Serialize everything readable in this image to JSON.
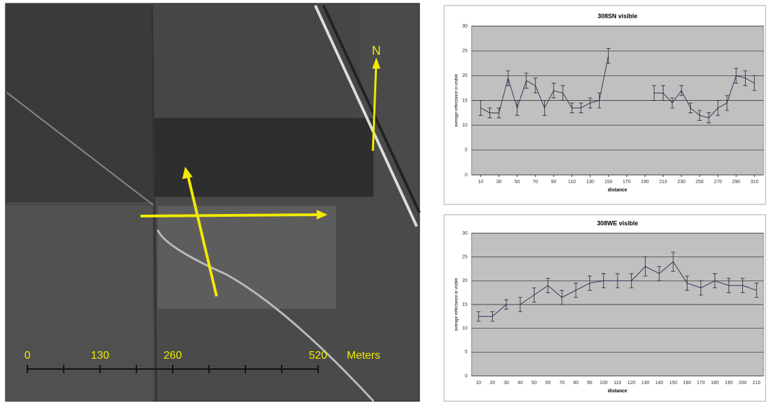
{
  "image": {
    "north_label": "N",
    "scale_labels": [
      0,
      130,
      260,
      520
    ],
    "scale_unit": "Meters"
  },
  "chart_data": [
    {
      "type": "line",
      "title": "308SN visible",
      "x_label": "distance",
      "y_label": "average reflectance in visible",
      "x": [
        10,
        20,
        30,
        40,
        50,
        60,
        70,
        80,
        90,
        100,
        110,
        120,
        130,
        140,
        150,
        160,
        170,
        180,
        190,
        200,
        210,
        220,
        230,
        240,
        250,
        260,
        270,
        280,
        290,
        300,
        310
      ],
      "values": [
        13.5,
        12.5,
        12.5,
        19.5,
        13.5,
        19,
        18,
        13.5,
        17,
        16.5,
        13.5,
        13.5,
        14.5,
        15,
        24,
        null,
        null,
        null,
        null,
        16.5,
        16.5,
        14.5,
        17,
        13.5,
        12,
        11.5,
        13.5,
        14.5,
        20,
        19.5,
        18.5
      ],
      "errors": [
        1.5,
        1,
        1,
        1.5,
        1.5,
        1.5,
        1.5,
        1.5,
        1.5,
        1.5,
        1,
        1,
        1,
        1.5,
        1.5,
        null,
        null,
        null,
        null,
        1.5,
        1.5,
        1,
        1,
        1,
        1,
        1,
        1.5,
        1.5,
        1.5,
        1.5,
        1.5
      ],
      "color": "#33335f",
      "xlim": [
        0,
        320
      ],
      "xticks": [
        10,
        30,
        50,
        70,
        90,
        110,
        130,
        150,
        170,
        190,
        210,
        230,
        250,
        270,
        290,
        310
      ],
      "ylim": [
        0,
        30
      ],
      "yticks": [
        0,
        5,
        10,
        15,
        20,
        25,
        30
      ],
      "grid": true
    },
    {
      "type": "line",
      "title": "308WE visible",
      "x_label": "distance",
      "y_label": "average reflectance in visible",
      "categories": [
        10,
        20,
        30,
        40,
        50,
        60,
        70,
        80,
        90,
        100,
        110,
        120,
        130,
        140,
        150,
        160,
        170,
        180,
        190,
        200,
        210
      ],
      "values": [
        12.5,
        12.5,
        15,
        15,
        17,
        19,
        16.5,
        18,
        19.5,
        20,
        20,
        20,
        23,
        21.5,
        24,
        19.5,
        18.5,
        20,
        19,
        19,
        18
      ],
      "errors": [
        1,
        1,
        1,
        1.5,
        1.5,
        1.5,
        1.5,
        1.5,
        1.5,
        1.5,
        1.5,
        1.5,
        2,
        1.5,
        2,
        1.5,
        1.5,
        1.5,
        1.5,
        1.5,
        1.5
      ],
      "color": "#33335f",
      "ylim": [
        0,
        30
      ],
      "yticks": [
        0,
        5,
        10,
        15,
        20,
        25,
        30
      ],
      "grid": true
    }
  ]
}
